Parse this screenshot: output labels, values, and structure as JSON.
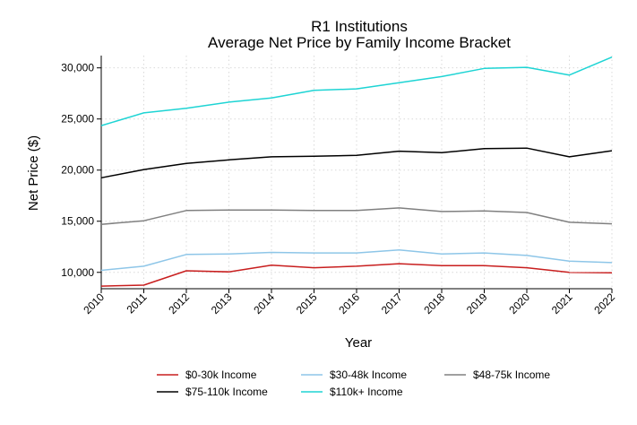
{
  "chart_data": {
    "type": "line",
    "title": "R1 Institutions",
    "subtitle": "Average Net Price by Family Income Bracket",
    "xlabel": "Year",
    "ylabel": "Net Price ($)",
    "x": [
      "2010",
      "2011",
      "2012",
      "2013",
      "2014",
      "2015",
      "2016",
      "2017",
      "2018",
      "2019",
      "2020",
      "2021",
      "2022"
    ],
    "xlim": [
      2010,
      2022
    ],
    "ylim": [
      8400,
      31200
    ],
    "yticks": [
      10000,
      15000,
      20000,
      25000,
      30000
    ],
    "ytick_labels": [
      "10,000",
      "15,000",
      "20,000",
      "25,000",
      "30,000"
    ],
    "grid": true,
    "legend_position": "bottom",
    "series": [
      {
        "name": "$0-30k Income",
        "color": "#c81e1e",
        "values": [
          8650,
          8750,
          10150,
          10050,
          10700,
          10450,
          10600,
          10850,
          10650,
          10650,
          10450,
          10000,
          9950
        ]
      },
      {
        "name": "$30-48k Income",
        "color": "#8ec6e8",
        "values": [
          10200,
          10600,
          11750,
          11800,
          11950,
          11900,
          11900,
          12200,
          11800,
          11900,
          11650,
          11100,
          10950
        ]
      },
      {
        "name": "$48-75k Income",
        "color": "#808080",
        "values": [
          14700,
          15050,
          16050,
          16100,
          16100,
          16050,
          16050,
          16300,
          15950,
          16000,
          15850,
          14900,
          14750
        ]
      },
      {
        "name": "$75-110k Income",
        "color": "#000000",
        "values": [
          19250,
          20050,
          20650,
          21000,
          21300,
          21350,
          21450,
          21850,
          21700,
          22100,
          22150,
          21300,
          21900
        ]
      },
      {
        "name": "$110k+ Income",
        "color": "#1ed4d4",
        "values": [
          24350,
          25600,
          26050,
          26650,
          27050,
          27800,
          27950,
          28550,
          29150,
          29950,
          30050,
          29300,
          31050
        ]
      }
    ]
  }
}
